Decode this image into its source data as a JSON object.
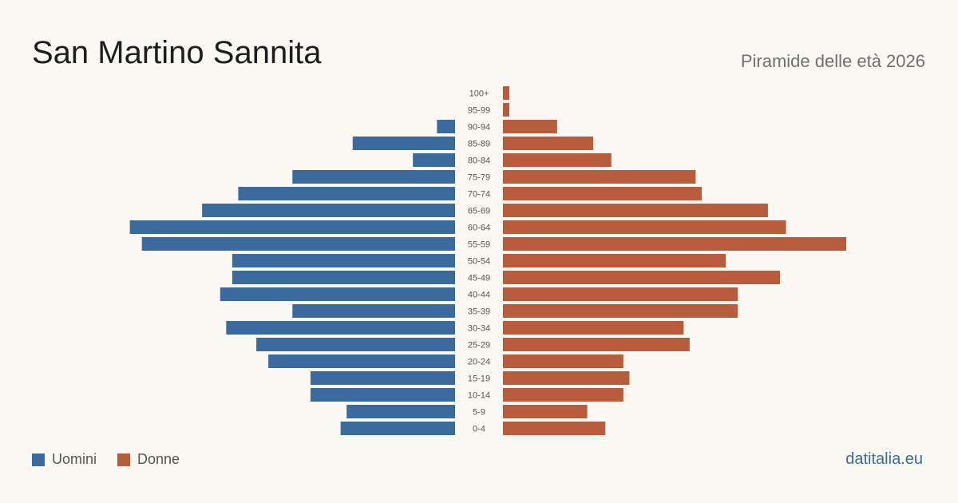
{
  "header": {
    "title": "San Martino Sannita",
    "subtitle": "Piramide delle età 2026"
  },
  "footer": {
    "source": "datitalia.eu"
  },
  "colors": {
    "male": "#3a6a9e",
    "female": "#b85c3c"
  },
  "chart_data": {
    "type": "bar",
    "orientation": "horizontal-pyramid",
    "categories": [
      "100+",
      "95-99",
      "90-94",
      "85-89",
      "80-84",
      "75-79",
      "70-74",
      "65-69",
      "60-64",
      "55-59",
      "50-54",
      "45-49",
      "40-44",
      "35-39",
      "30-34",
      "25-29",
      "20-24",
      "15-19",
      "10-14",
      "5-9",
      "0-4"
    ],
    "series": [
      {
        "name": "Uomini",
        "values": [
          0,
          0,
          3,
          17,
          7,
          27,
          36,
          42,
          54,
          52,
          37,
          37,
          39,
          27,
          38,
          33,
          31,
          24,
          24,
          18,
          19
        ]
      },
      {
        "name": "Donne",
        "values": [
          1,
          1,
          9,
          15,
          18,
          32,
          33,
          44,
          47,
          57,
          37,
          46,
          39,
          39,
          30,
          31,
          20,
          21,
          20,
          14,
          17
        ]
      }
    ],
    "legend": "bottom-left",
    "grid": false
  }
}
